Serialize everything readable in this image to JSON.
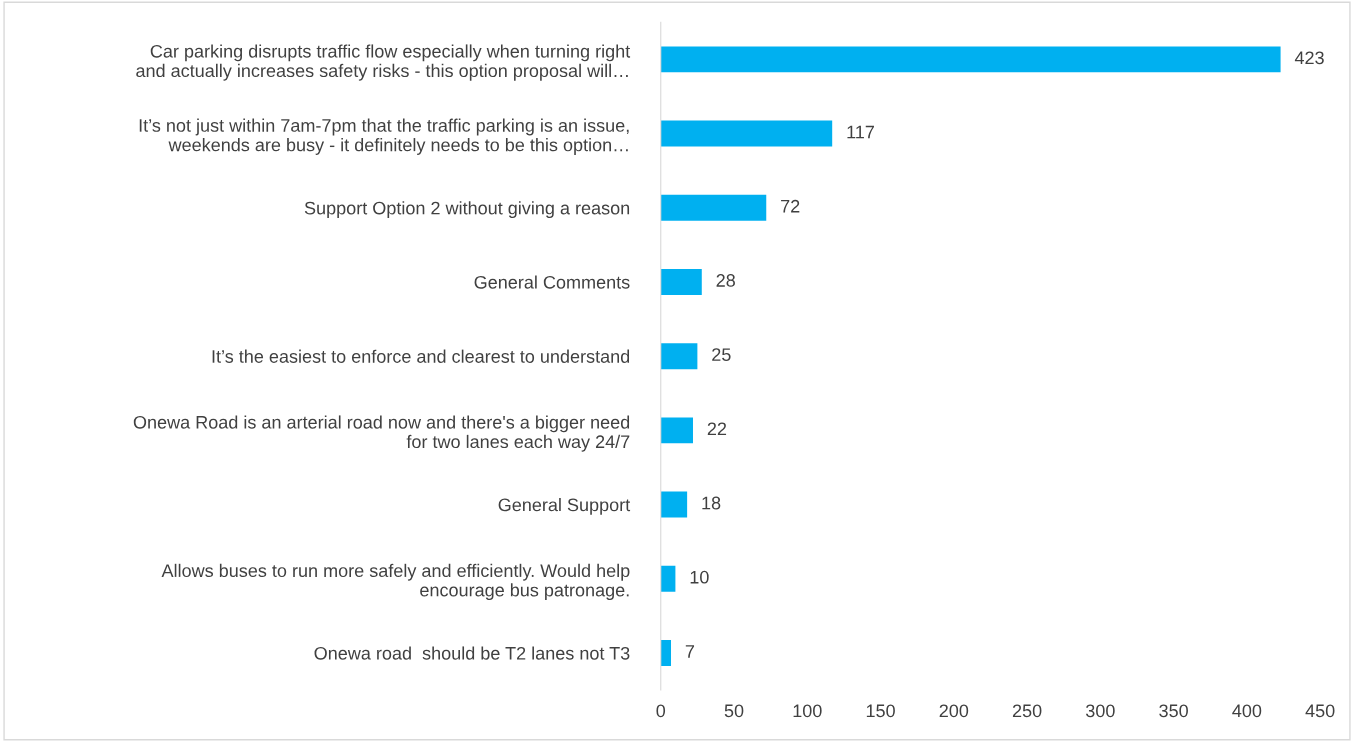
{
  "chart_data": {
    "type": "bar",
    "orientation": "horizontal",
    "categories": [
      "Car parking disrupts traffic flow especially when turning right\nand actually increases safety risks - this option proposal will…",
      "It’s not just within 7am-7pm that the traffic parking is an issue,\nweekends are busy - it definitely needs to be this option…",
      "Support Option 2 without giving a reason",
      "General Comments",
      "It’s the easiest to enforce and clearest to understand",
      "Onewa Road is an arterial road now and there's a bigger need\nfor two lanes each way 24/7",
      "General Support",
      "Allows buses to run more safely and efficiently. Would help\nencourage bus patronage.",
      "Onewa road  should be T2 lanes not T3"
    ],
    "values": [
      423,
      117,
      72,
      28,
      25,
      22,
      18,
      10,
      7
    ],
    "color": "#00b0f0",
    "xlim": [
      0,
      450
    ],
    "xticks": [
      0,
      50,
      100,
      150,
      200,
      250,
      300,
      350,
      400,
      450
    ],
    "data_labels": true,
    "grid": false,
    "legend": false
  }
}
